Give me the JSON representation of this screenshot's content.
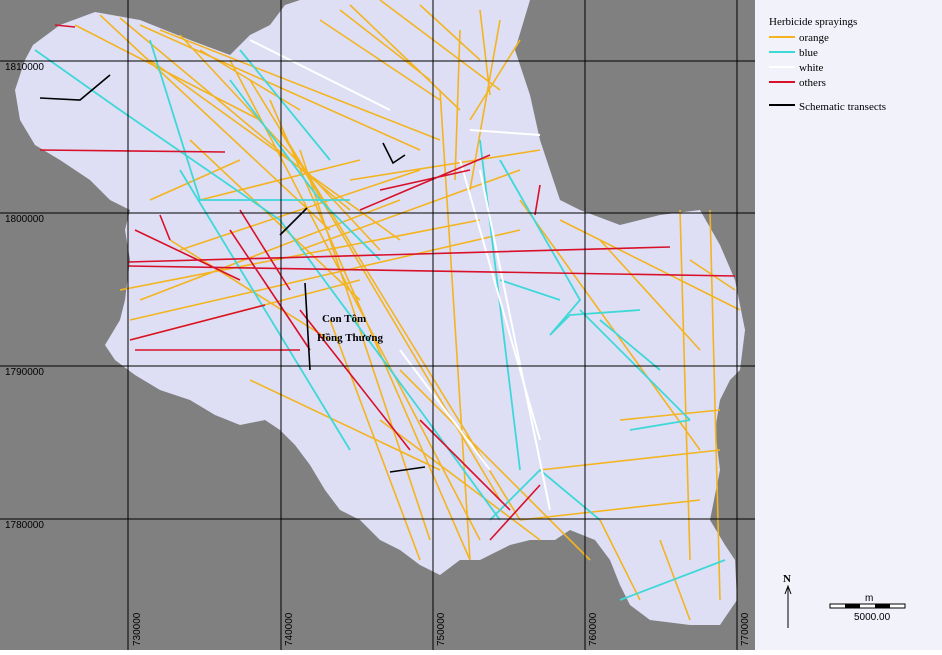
{
  "legend": {
    "title": "Herbicide sprayings",
    "items": [
      "orange",
      "blue",
      "white",
      "others"
    ],
    "transects": "Schematic transects"
  },
  "grid": {
    "northing": [
      "1810000",
      "1800000",
      "1790000",
      "1780000"
    ],
    "easting": [
      "730000",
      "740000",
      "750000",
      "760000",
      "770000"
    ]
  },
  "place_label": [
    "Con Tôm",
    "Hồng Thương"
  ],
  "north_arrow": "N",
  "scale_bar": {
    "unit": "m",
    "length": "5000.00"
  }
}
